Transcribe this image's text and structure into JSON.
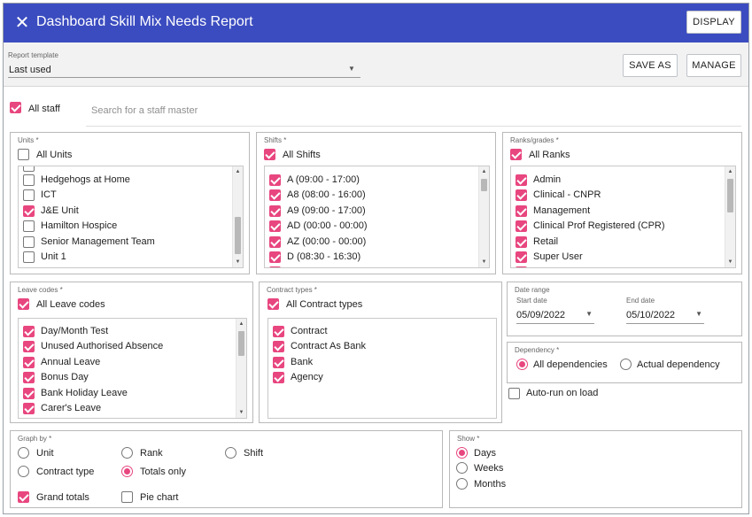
{
  "header": {
    "title": "Dashboard Skill Mix Needs Report",
    "close_icon": "✕",
    "display_label": "DISPLAY",
    "bg_color": "#3b4cc0"
  },
  "template": {
    "label": "Report template",
    "value": "Last used",
    "save_as_label": "SAVE AS",
    "manage_label": "MANAGE"
  },
  "staff": {
    "all_label": "All staff",
    "all_checked": true,
    "search_placeholder": "Search for a staff master"
  },
  "units": {
    "label": "Units *",
    "all_label": "All Units",
    "all_checked": false,
    "items": [
      {
        "label": "Hedgehogs at Home",
        "checked": false
      },
      {
        "label": "ICT",
        "checked": false
      },
      {
        "label": "J&E Unit",
        "checked": true
      },
      {
        "label": "Hamilton Hospice",
        "checked": false
      },
      {
        "label": "Senior Management Team",
        "checked": false
      },
      {
        "label": "Unit 1",
        "checked": false
      }
    ]
  },
  "shifts": {
    "label": "Shifts *",
    "all_label": "All Shifts",
    "all_checked": true,
    "items": [
      {
        "label": "A (09:00 - 17:00)",
        "checked": true
      },
      {
        "label": "A8 (08:00 - 16:00)",
        "checked": true
      },
      {
        "label": "A9 (09:00 - 17:00)",
        "checked": true
      },
      {
        "label": "AD (00:00 - 00:00)",
        "checked": true
      },
      {
        "label": "AZ (00:00 - 00:00)",
        "checked": true
      },
      {
        "label": "D (08:30 - 16:30)",
        "checked": true
      }
    ]
  },
  "ranks": {
    "label": "Ranks/grades *",
    "all_label": "All Ranks",
    "all_checked": true,
    "items": [
      {
        "label": "Admin",
        "checked": true
      },
      {
        "label": "Clinical - CNPR",
        "checked": true
      },
      {
        "label": "Management",
        "checked": true
      },
      {
        "label": "Clinical Prof Registered (CPR)",
        "checked": true
      },
      {
        "label": "Retail",
        "checked": true
      },
      {
        "label": "Super User",
        "checked": true
      }
    ]
  },
  "leave": {
    "label": "Leave codes *",
    "all_label": "All Leave codes",
    "all_checked": true,
    "items": [
      {
        "label": "Day/Month Test",
        "checked": true
      },
      {
        "label": "Unused Authorised Absence",
        "checked": true
      },
      {
        "label": "Annual Leave",
        "checked": true
      },
      {
        "label": "Bonus Day",
        "checked": true
      },
      {
        "label": "Bank Holiday Leave",
        "checked": true
      },
      {
        "label": "Carer's Leave",
        "checked": true
      }
    ]
  },
  "contracts": {
    "label": "Contract types *",
    "all_label": "All Contract types",
    "all_checked": true,
    "items": [
      {
        "label": "Contract",
        "checked": true
      },
      {
        "label": "Contract As Bank",
        "checked": true
      },
      {
        "label": "Bank",
        "checked": true
      },
      {
        "label": "Agency",
        "checked": true
      }
    ]
  },
  "date_range": {
    "label": "Date range",
    "start_label": "Start date",
    "start_value": "05/09/2022",
    "end_label": "End date",
    "end_value": "05/10/2022"
  },
  "dependency": {
    "label": "Dependency *",
    "options": [
      {
        "label": "All dependencies",
        "selected": true
      },
      {
        "label": "Actual dependency",
        "selected": false
      }
    ]
  },
  "autorun": {
    "label": "Auto-run on load",
    "checked": false
  },
  "graph_by": {
    "label": "Graph by *",
    "options": [
      {
        "label": "Unit",
        "selected": false
      },
      {
        "label": "Rank",
        "selected": false
      },
      {
        "label": "Shift",
        "selected": false
      },
      {
        "label": "Contract type",
        "selected": false
      },
      {
        "label": "Totals only",
        "selected": true
      }
    ],
    "grand_totals_label": "Grand totals",
    "grand_totals_checked": true,
    "pie_chart_label": "Pie chart",
    "pie_chart_checked": false
  },
  "show": {
    "label": "Show *",
    "options": [
      {
        "label": "Days",
        "selected": true
      },
      {
        "label": "Weeks",
        "selected": false
      },
      {
        "label": "Months",
        "selected": false
      }
    ]
  },
  "accent_color": "#e8467f"
}
